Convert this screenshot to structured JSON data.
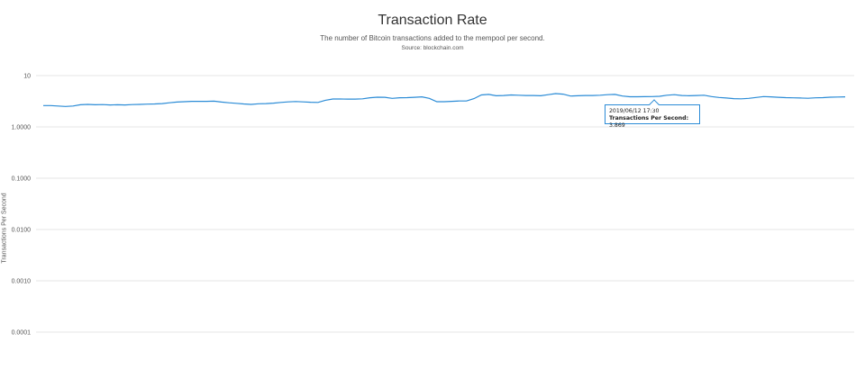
{
  "chart_data": {
    "type": "line",
    "title": "Transaction Rate",
    "subtitle": "The number of Bitcoin transactions added to the mempool per second.",
    "source": "Source: blockchain.com",
    "ylabel": "Transactions Per Second",
    "yscale": "log",
    "ylim": [
      0.0001,
      10
    ],
    "yticks": [
      {
        "value": 10,
        "label": "10"
      },
      {
        "value": 1,
        "label": "1.0000"
      },
      {
        "value": 0.1,
        "label": "0.1000"
      },
      {
        "value": 0.01,
        "label": "0.0100"
      },
      {
        "value": 0.001,
        "label": "0.0010"
      },
      {
        "value": 0.0001,
        "label": "0.0001"
      }
    ],
    "grid": true,
    "line_color": "#2a8bd6",
    "series": [
      {
        "values": [
          2.6,
          2.6,
          2.55,
          2.5,
          2.55,
          2.7,
          2.75,
          2.7,
          2.72,
          2.68,
          2.7,
          2.68,
          2.72,
          2.75,
          2.78,
          2.8,
          2.85,
          2.95,
          3.05,
          3.1,
          3.15,
          3.15,
          3.15,
          3.18,
          3.05,
          2.95,
          2.88,
          2.8,
          2.75,
          2.82,
          2.85,
          2.9,
          3.0,
          3.08,
          3.12,
          3.08,
          3.02,
          3.0,
          3.3,
          3.5,
          3.5,
          3.48,
          3.48,
          3.52,
          3.7,
          3.8,
          3.78,
          3.6,
          3.7,
          3.72,
          3.78,
          3.85,
          3.6,
          3.1,
          3.1,
          3.15,
          3.2,
          3.2,
          3.55,
          4.2,
          4.3,
          4.05,
          4.1,
          4.2,
          4.15,
          4.1,
          4.1,
          4.05,
          4.25,
          4.45,
          4.35,
          4.0,
          4.05,
          4.1,
          4.1,
          4.15,
          4.25,
          4.3,
          4.0,
          3.87,
          3.87,
          3.88,
          3.9,
          3.95,
          4.15,
          4.25,
          4.1,
          4.05,
          4.1,
          4.15,
          3.9,
          3.75,
          3.65,
          3.55,
          3.52,
          3.6,
          3.75,
          3.9,
          3.85,
          3.78,
          3.72,
          3.68,
          3.65,
          3.62,
          3.68,
          3.72,
          3.8,
          3.82,
          3.85
        ]
      }
    ],
    "highlight_index": 79
  },
  "tooltip": {
    "date": "2019/06/12 17:30",
    "label": "Transactions Per Second",
    "value": "3.869"
  }
}
